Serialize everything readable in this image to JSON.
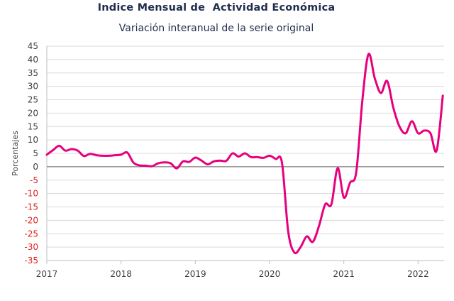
{
  "chart_data": {
    "type": "line",
    "title": "Indice Mensual de  Actividad Económica",
    "subtitle": "Variación interanual de la serie original",
    "ylabel": "Porcentajes",
    "ylim": [
      -35,
      45
    ],
    "yticks": [
      45,
      40,
      35,
      30,
      25,
      20,
      15,
      10,
      5,
      0,
      -5,
      -10,
      -15,
      -20,
      -25,
      -30,
      -35
    ],
    "xlim": [
      2017.0,
      2022.35
    ],
    "xticks": [
      "2017",
      "2018",
      "2019",
      "2020",
      "2021",
      "2022"
    ],
    "grid": "horizontal",
    "colors": {
      "line": "#e6007e",
      "zero_line": "#7f7f7f",
      "grid": "#d9d9d9",
      "negative_tick": "#e0201b"
    },
    "series": [
      {
        "x": [
          2017.0,
          2017.083,
          2017.167,
          2017.25,
          2017.333,
          2017.417,
          2017.5,
          2017.583,
          2017.667,
          2017.75,
          2017.833,
          2017.917,
          2018.0,
          2018.083,
          2018.167,
          2018.25,
          2018.333,
          2018.417,
          2018.5,
          2018.583,
          2018.667,
          2018.75,
          2018.833,
          2018.917,
          2019.0,
          2019.083,
          2019.167,
          2019.25,
          2019.333,
          2019.417,
          2019.5,
          2019.583,
          2019.667,
          2019.75,
          2019.833,
          2019.917,
          2020.0,
          2020.083,
          2020.167,
          2020.25,
          2020.333,
          2020.417,
          2020.5,
          2020.583,
          2020.667,
          2020.75,
          2020.833,
          2020.917,
          2021.0,
          2021.083,
          2021.167,
          2021.25,
          2021.333,
          2021.417,
          2021.5,
          2021.583,
          2021.667,
          2021.75,
          2021.833,
          2021.917,
          2022.0,
          2022.083,
          2022.167,
          2022.25,
          2022.333
        ],
        "values": [
          4.5,
          6.2,
          7.8,
          6.0,
          6.6,
          6.0,
          4.0,
          4.8,
          4.3,
          4.1,
          4.1,
          4.3,
          4.5,
          5.3,
          1.5,
          0.5,
          0.4,
          0.2,
          1.3,
          1.6,
          1.3,
          -0.6,
          2.0,
          1.8,
          3.4,
          2.3,
          0.9,
          2.0,
          2.3,
          2.2,
          5.0,
          3.8,
          5.0,
          3.6,
          3.6,
          3.3,
          4.1,
          2.9,
          1.5,
          -24.0,
          -32.0,
          -30.0,
          -26.0,
          -28.0,
          -22.0,
          -14.0,
          -14.0,
          -0.5,
          -11.5,
          -6.0,
          -2.0,
          25.0,
          42.0,
          33.0,
          27.5,
          32.0,
          22.0,
          15.0,
          12.5,
          17.0,
          12.5,
          13.5,
          12.5,
          6.0,
          26.5
        ]
      }
    ]
  }
}
